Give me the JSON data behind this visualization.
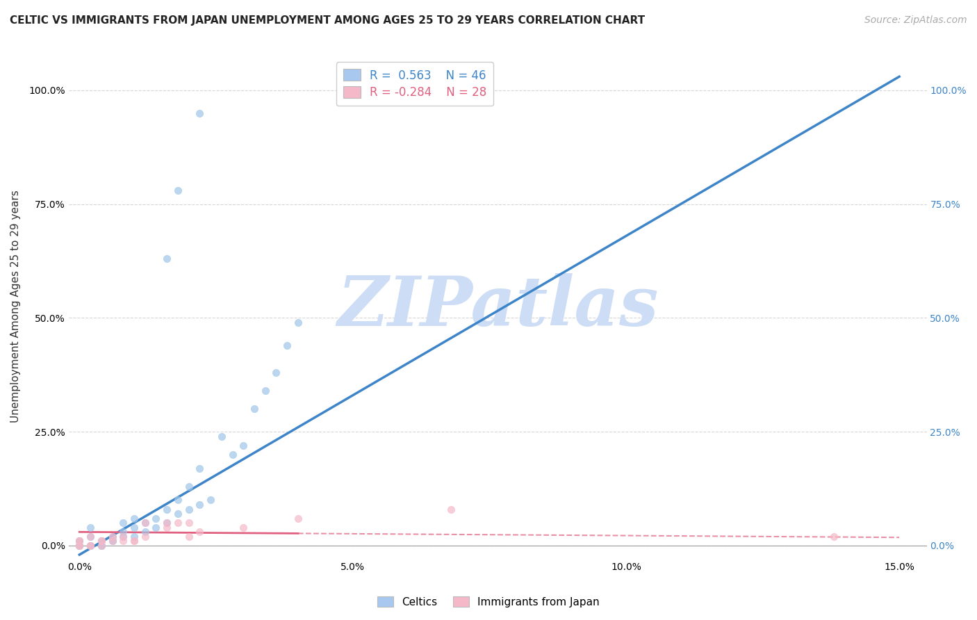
{
  "title": "CELTIC VS IMMIGRANTS FROM JAPAN UNEMPLOYMENT AMONG AGES 25 TO 29 YEARS CORRELATION CHART",
  "source_text": "Source: ZipAtlas.com",
  "ylabel": "Unemployment Among Ages 25 to 29 years",
  "xlim": [
    0.0,
    0.15
  ],
  "ylim": [
    0.0,
    1.05
  ],
  "xtick_labels": [
    "0.0%",
    "5.0%",
    "10.0%",
    "15.0%"
  ],
  "xtick_values": [
    0.0,
    0.05,
    0.1,
    0.15
  ],
  "ytick_labels": [
    "0.0%",
    "25.0%",
    "50.0%",
    "75.0%",
    "100.0%"
  ],
  "ytick_values": [
    0.0,
    0.25,
    0.5,
    0.75,
    1.0
  ],
  "celtics_color": "#9fc5e8",
  "japan_color": "#f4b8c8",
  "trendline_celtics_color": "#3d85c8",
  "trendline_japan_color": "#e06080",
  "R_celtics": 0.563,
  "N_celtics": 46,
  "R_japan": -0.284,
  "N_japan": 28,
  "watermark": "ZIPatlas",
  "background_color": "#ffffff",
  "grid_color": "#cccccc",
  "celtics_scatter": [
    [
      0.0,
      0.0
    ],
    [
      0.0,
      0.01
    ],
    [
      0.0,
      0.0
    ],
    [
      0.0,
      0.0
    ],
    [
      0.0,
      0.01
    ],
    [
      0.002,
      0.0
    ],
    [
      0.002,
      0.02
    ],
    [
      0.002,
      0.0
    ],
    [
      0.002,
      0.04
    ],
    [
      0.004,
      0.0
    ],
    [
      0.004,
      0.01
    ],
    [
      0.004,
      0.01
    ],
    [
      0.004,
      0.0
    ],
    [
      0.006,
      0.02
    ],
    [
      0.006,
      0.01
    ],
    [
      0.006,
      0.01
    ],
    [
      0.008,
      0.03
    ],
    [
      0.008,
      0.02
    ],
    [
      0.008,
      0.05
    ],
    [
      0.01,
      0.04
    ],
    [
      0.01,
      0.06
    ],
    [
      0.01,
      0.02
    ],
    [
      0.012,
      0.03
    ],
    [
      0.012,
      0.05
    ],
    [
      0.014,
      0.06
    ],
    [
      0.014,
      0.04
    ],
    [
      0.016,
      0.08
    ],
    [
      0.016,
      0.05
    ],
    [
      0.018,
      0.07
    ],
    [
      0.018,
      0.1
    ],
    [
      0.02,
      0.08
    ],
    [
      0.02,
      0.13
    ],
    [
      0.022,
      0.09
    ],
    [
      0.022,
      0.17
    ],
    [
      0.024,
      0.1
    ],
    [
      0.026,
      0.24
    ],
    [
      0.028,
      0.2
    ],
    [
      0.03,
      0.22
    ],
    [
      0.032,
      0.3
    ],
    [
      0.034,
      0.34
    ],
    [
      0.036,
      0.38
    ],
    [
      0.038,
      0.44
    ],
    [
      0.04,
      0.49
    ],
    [
      0.016,
      0.63
    ],
    [
      0.018,
      0.78
    ],
    [
      0.022,
      0.95
    ]
  ],
  "japan_scatter": [
    [
      0.0,
      0.0
    ],
    [
      0.0,
      0.0
    ],
    [
      0.0,
      0.01
    ],
    [
      0.0,
      0.01
    ],
    [
      0.002,
      0.0
    ],
    [
      0.002,
      0.0
    ],
    [
      0.002,
      0.02
    ],
    [
      0.004,
      0.0
    ],
    [
      0.004,
      0.01
    ],
    [
      0.004,
      0.01
    ],
    [
      0.006,
      0.01
    ],
    [
      0.006,
      0.02
    ],
    [
      0.008,
      0.01
    ],
    [
      0.008,
      0.02
    ],
    [
      0.01,
      0.01
    ],
    [
      0.01,
      0.01
    ],
    [
      0.012,
      0.05
    ],
    [
      0.012,
      0.02
    ],
    [
      0.016,
      0.05
    ],
    [
      0.016,
      0.04
    ],
    [
      0.018,
      0.05
    ],
    [
      0.02,
      0.05
    ],
    [
      0.02,
      0.02
    ],
    [
      0.022,
      0.03
    ],
    [
      0.03,
      0.04
    ],
    [
      0.04,
      0.06
    ],
    [
      0.068,
      0.08
    ],
    [
      0.138,
      0.02
    ]
  ],
  "legend_box_celtics": "#a8c8f0",
  "legend_box_japan": "#f4b8c8",
  "legend_fontsize": 12,
  "title_fontsize": 11,
  "source_fontsize": 10,
  "ylabel_fontsize": 11,
  "watermark_color": "#ccddf5",
  "watermark_fontsize": 72,
  "trendline_celtics_slope": 7.0,
  "trendline_celtics_intercept": -0.02,
  "trendline_japan_slope": -0.08,
  "trendline_japan_intercept": 0.03
}
